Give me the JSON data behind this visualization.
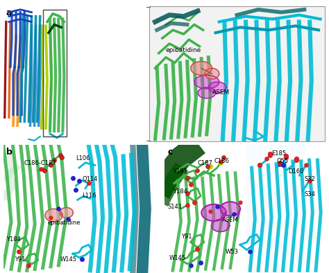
{
  "panel_a_label": "a",
  "panel_b_label": "b",
  "panel_c_label": "c",
  "bg_color": "#ffffff",
  "label_fontsize": 9,
  "small_annotation_fontsize": 6.0,
  "epibatidine_label": "epibatidine",
  "ASEM_label": "ASEM",
  "colors": {
    "green_protein": "#3cb34a",
    "green2": "#2da83e",
    "cyan_protein": "#00bcd4",
    "cyan2": "#0099b0",
    "teal_protein": "#008b8b",
    "dark_teal": "#006070",
    "dark_green": "#004400",
    "red": "#cc2222",
    "orange": "#ff7700",
    "yellow": "#ddcc00",
    "blue": "#2244cc",
    "navy": "#000080",
    "magenta": "#cc44cc",
    "pink_ligand": "#e8a0a0",
    "magenta_ligand": "#dd44dd",
    "light_green": "#90ee90",
    "light_cyan": "#b0eeff",
    "oxygen_red": "#dd2222",
    "nitrogen_blue": "#2222cc",
    "sulfur_yellow": "#cccc00",
    "rainbow": [
      "#8b0000",
      "#cc2200",
      "#ee5500",
      "#ff8800",
      "#ffcc00",
      "#aacc00",
      "#55aa00",
      "#00aa55",
      "#0088aa",
      "#1144bb",
      "#0000aa"
    ]
  },
  "figure_width": 4.74,
  "figure_height": 3.94,
  "dpi": 100
}
